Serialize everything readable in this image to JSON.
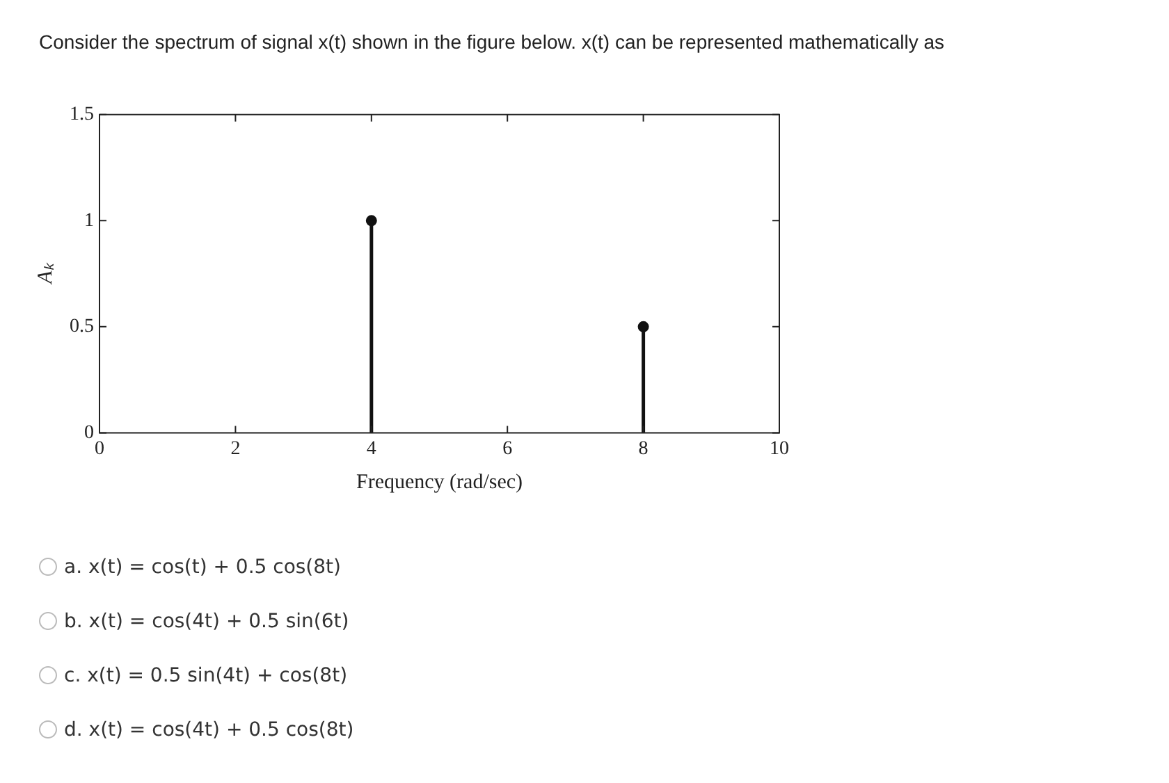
{
  "chart_data": {
    "type": "lollipop",
    "title": "Consider the spectrum of signal x(t) shown in the figure below. x(t) can be represented mathematically as",
    "xlabel": "Frequency (rad/sec)",
    "ylabel": "Aₖ",
    "x": [
      4,
      8
    ],
    "values": [
      1,
      0.5
    ],
    "color": "#111111",
    "marker": "circle",
    "xlim": [
      0,
      10
    ],
    "xticks": [
      0,
      2,
      4,
      6,
      8,
      10
    ],
    "ylim": [
      0,
      1.5
    ],
    "yticks": [
      0,
      0.5,
      1,
      1.5
    ],
    "grid": false,
    "legend": false,
    "annotations": [
      "a. x(t) = cos(t) + 0.5 cos(8t)",
      "b. x(t) = cos(4t) + 0.5 sin(6t)",
      "c. x(t) = 0.5 sin(4t) + cos(8t)",
      "d. x(t) = cos(4t) + 0.5 cos(8t)"
    ]
  }
}
